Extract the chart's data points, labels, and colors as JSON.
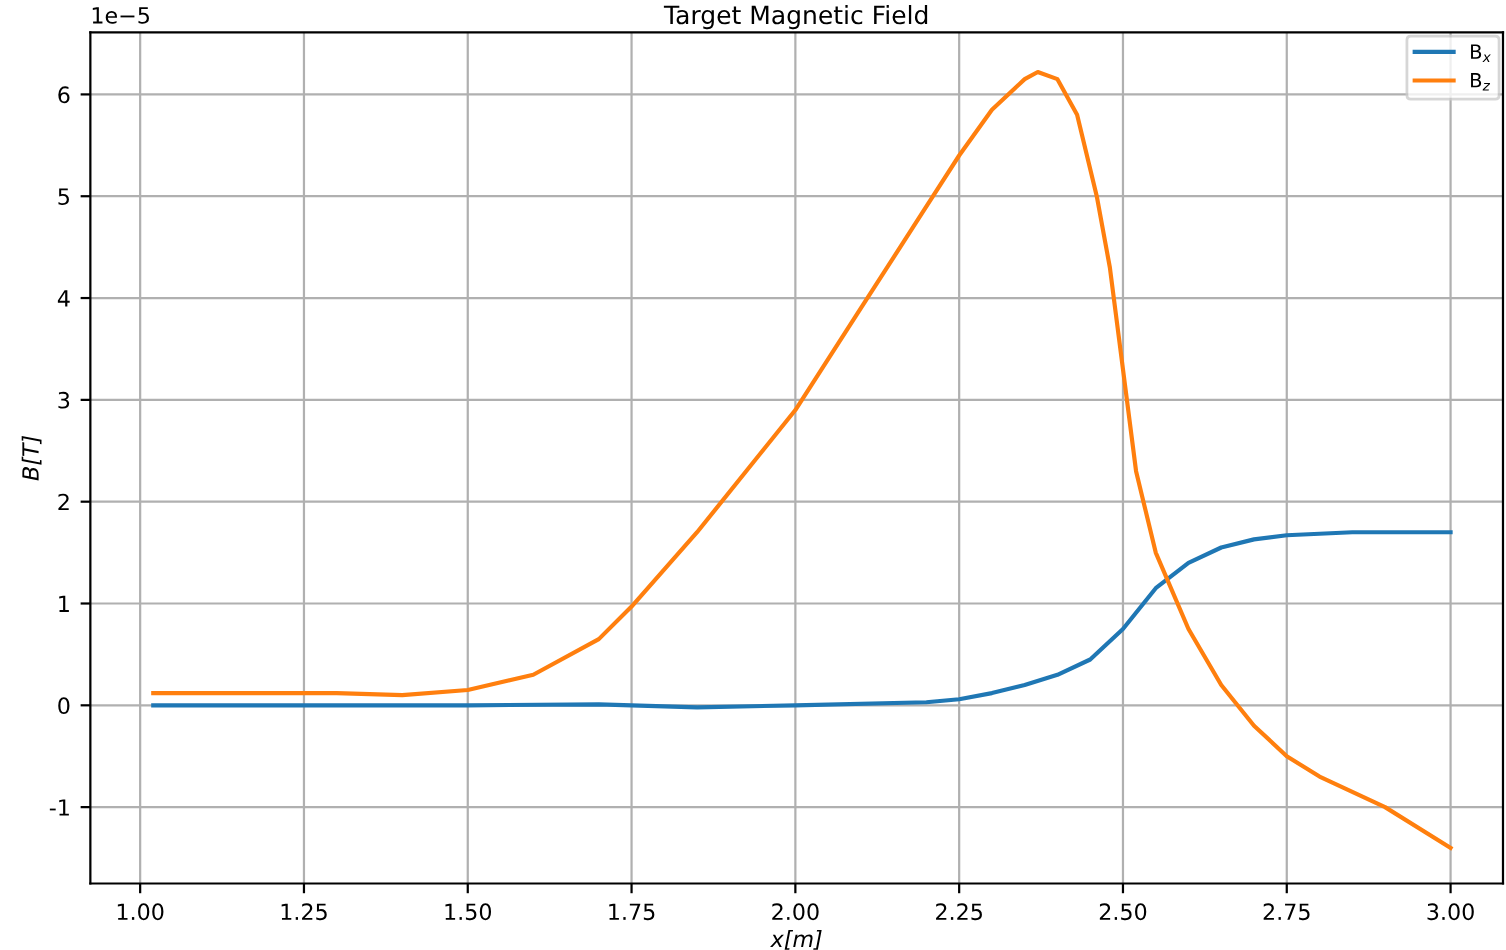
{
  "chart_data": {
    "type": "line",
    "title": "Target Magnetic Field",
    "xlabel": "x[m]",
    "ylabel": "B[T]",
    "annotations": [
      "1e−5"
    ],
    "xlim": [
      0.924,
      3.08
    ],
    "xticks": [
      {
        "value": 1.0,
        "label": "1.00"
      },
      {
        "value": 1.25,
        "label": "1.25"
      },
      {
        "value": 1.5,
        "label": "1.50"
      },
      {
        "value": 1.75,
        "label": "1.75"
      },
      {
        "value": 2.0,
        "label": "2.00"
      },
      {
        "value": 2.25,
        "label": "2.25"
      },
      {
        "value": 2.5,
        "label": "2.50"
      },
      {
        "value": 2.75,
        "label": "2.75"
      },
      {
        "value": 3.0,
        "label": "3.00"
      }
    ],
    "ylim": [
      -1.75,
      6.61
    ],
    "yticks": [
      -1,
      0,
      1,
      2,
      3,
      4,
      5,
      6
    ],
    "grid": true,
    "legend": "top right",
    "series": [
      {
        "name": "B$_{x}$",
        "color": "#1f77b4",
        "x": [
          1.02,
          1.3,
          1.5,
          1.7,
          1.85,
          2.0,
          2.2,
          2.25,
          2.3,
          2.35,
          2.4,
          2.45,
          2.5,
          2.55,
          2.6,
          2.65,
          2.7,
          2.75,
          2.85,
          3.0
        ],
        "values": [
          0,
          0,
          0,
          0.01,
          -0.02,
          0,
          0.03,
          0.06,
          0.12,
          0.2,
          0.3,
          0.45,
          0.75,
          1.15,
          1.4,
          1.55,
          1.63,
          1.67,
          1.7,
          1.7
        ]
      },
      {
        "name": "B$_{z}$",
        "color": "#ff7f0e",
        "x": [
          1.02,
          1.3,
          1.4,
          1.5,
          1.6,
          1.7,
          1.75,
          1.85,
          1.95,
          2.0,
          2.1,
          2.2,
          2.25,
          2.3,
          2.35,
          2.37,
          2.4,
          2.43,
          2.46,
          2.48,
          2.5,
          2.52,
          2.55,
          2.6,
          2.65,
          2.7,
          2.75,
          2.8,
          2.9,
          3.0
        ],
        "values": [
          0.12,
          0.12,
          0.1,
          0.15,
          0.3,
          0.65,
          0.97,
          1.7,
          2.5,
          2.9,
          3.9,
          4.9,
          5.4,
          5.85,
          6.15,
          6.22,
          6.15,
          5.8,
          5.0,
          4.3,
          3.3,
          2.3,
          1.5,
          0.75,
          0.2,
          -0.2,
          -0.5,
          -0.7,
          -1.0,
          -1.4
        ]
      }
    ]
  }
}
